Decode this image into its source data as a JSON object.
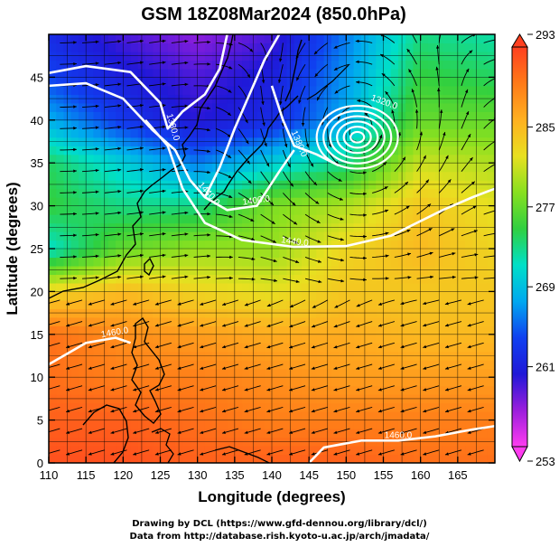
{
  "chart_data": {
    "type": "heatmap",
    "title": "GSM 18Z08Mar2024 (850.0hPa)",
    "xlabel": "Longitude (degrees)",
    "ylabel": "Latitude  (degrees)",
    "xlim": [
      110,
      170
    ],
    "ylim": [
      0,
      50
    ],
    "x_ticks": [
      110,
      115,
      120,
      125,
      130,
      135,
      140,
      145,
      150,
      155,
      160,
      165
    ],
    "y_ticks": [
      0,
      5,
      10,
      15,
      20,
      25,
      30,
      35,
      40,
      45
    ],
    "grid": true,
    "colorbar": {
      "range": [
        253,
        293
      ],
      "ticks": [
        253,
        261,
        269,
        277,
        285,
        293
      ],
      "stops": [
        "#ff3cf0",
        "#9b1edc",
        "#2018d8",
        "#1040f0",
        "#00a8f0",
        "#00e0c8",
        "#30d040",
        "#88e020",
        "#e8e020",
        "#ffb020",
        "#ff7a18",
        "#ff4020"
      ]
    },
    "temperature_field": {
      "lat": [
        0,
        5,
        10,
        15,
        20,
        25,
        30,
        35,
        40,
        45,
        50
      ],
      "lon": [
        110,
        120,
        130,
        140,
        150,
        160,
        170
      ],
      "values": [
        [
          292,
          292,
          291,
          291,
          291,
          290,
          290
        ],
        [
          291,
          291,
          290,
          289,
          289,
          289,
          289
        ],
        [
          290,
          289,
          289,
          288,
          287,
          287,
          287
        ],
        [
          290,
          288,
          287,
          286,
          286,
          285,
          285
        ],
        [
          283,
          285,
          283,
          282,
          284,
          284,
          284
        ],
        [
          271,
          277,
          279,
          279,
          283,
          285,
          283
        ],
        [
          275,
          273,
          273,
          278,
          280,
          284,
          282
        ],
        [
          274,
          270,
          266,
          270,
          273,
          281,
          280
        ],
        [
          268,
          263,
          260,
          262,
          268,
          277,
          277
        ],
        [
          264,
          261,
          259,
          261,
          267,
          275,
          274
        ],
        [
          262,
          259,
          257,
          259,
          266,
          273,
          272
        ]
      ]
    },
    "height_contours": [
      {
        "label": "1380.0",
        "points": [
          [
            110,
            45.5
          ],
          [
            115,
            46.3
          ],
          [
            121,
            45.6
          ],
          [
            125,
            42
          ],
          [
            126,
            39
          ],
          [
            128,
            41
          ],
          [
            131,
            43
          ],
          [
            133,
            46
          ],
          [
            134,
            50
          ]
        ]
      },
      {
        "label": "1440.0",
        "points": [
          [
            110,
            44
          ],
          [
            115,
            44.3
          ],
          [
            120,
            42.5
          ],
          [
            124,
            38.8
          ],
          [
            127,
            36.5
          ],
          [
            129,
            33
          ],
          [
            131,
            31
          ],
          [
            133,
            34.5
          ],
          [
            135,
            39
          ],
          [
            137,
            43
          ],
          [
            139,
            47
          ],
          [
            141,
            50
          ]
        ]
      },
      {
        "label": "1380.0",
        "points": [
          [
            140,
            44
          ],
          [
            141.5,
            40
          ],
          [
            143,
            37
          ],
          [
            146,
            36
          ],
          [
            149,
            34.7
          ]
        ]
      },
      {
        "label": "1400.0",
        "points": [
          [
            131,
            31
          ],
          [
            134,
            29.5
          ],
          [
            138,
            30
          ],
          [
            141,
            34
          ],
          [
            143,
            36.5
          ]
        ]
      },
      {
        "label": "1440.0",
        "points": [
          [
            123,
            40
          ],
          [
            126,
            37
          ],
          [
            128,
            32
          ],
          [
            131,
            28
          ],
          [
            136,
            26
          ],
          [
            143,
            25.2
          ],
          [
            150,
            25.3
          ],
          [
            156,
            26.5
          ],
          [
            163,
            29.5
          ],
          [
            167,
            31
          ],
          [
            170,
            32
          ]
        ]
      },
      {
        "label": "1460.0",
        "points": [
          [
            110,
            11.5
          ],
          [
            115,
            14
          ],
          [
            119,
            14.6
          ],
          [
            121,
            14
          ]
        ]
      },
      {
        "label": "1460.0",
        "points": [
          [
            145,
            0
          ],
          [
            147,
            1.8
          ],
          [
            152,
            2.6
          ],
          [
            157,
            2.6
          ],
          [
            162,
            3.1
          ],
          [
            167,
            3.9
          ],
          [
            170,
            4.3
          ]
        ]
      }
    ],
    "low_center": {
      "lon": 151.5,
      "lat": 38
    },
    "annotations": [
      "1380.0",
      "1440.0",
      "1400.0",
      "1440.0",
      "1460.0",
      "1380.0",
      "1320.0"
    ]
  },
  "credits": {
    "line1": "Drawing by DCL (https://www.gfd-dennou.org/library/dcl/)",
    "line2": "Data from http://database.rish.kyoto-u.ac.jp/arch/jmadata/"
  }
}
